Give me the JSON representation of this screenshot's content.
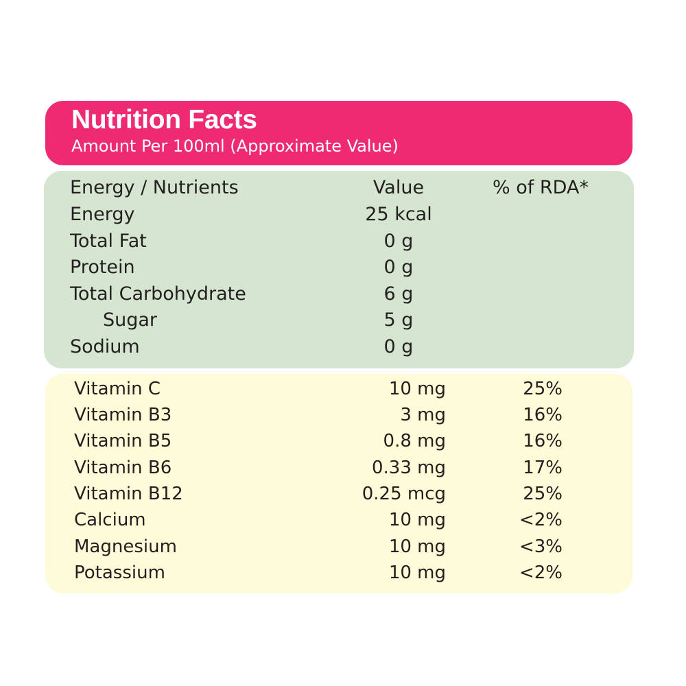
{
  "header": {
    "title": "Nutrition Facts",
    "subtitle": "Amount Per 100ml (Approximate Value)"
  },
  "nutrients": {
    "columns": {
      "name": "Energy / Nutrients",
      "value": "Value",
      "rda": "% of RDA*"
    },
    "rows": [
      {
        "name": "Energy",
        "value": "25 kcal"
      },
      {
        "name": "Total Fat",
        "value": "0 g"
      },
      {
        "name": "Protein",
        "value": "0 g"
      },
      {
        "name": "Total Carbohydrate",
        "value": "6 g"
      },
      {
        "name": "Sugar",
        "value": "5 g"
      },
      {
        "name": "Sodium",
        "value": "0 g"
      }
    ]
  },
  "vitamins": {
    "rows": [
      {
        "name": "Vitamin C",
        "value": "10 mg",
        "rda": "25%"
      },
      {
        "name": "Vitamin B3",
        "value": "3 mg",
        "rda": "16%"
      },
      {
        "name": "Vitamin B5",
        "value": "0.8 mg",
        "rda": "16%"
      },
      {
        "name": "Vitamin B6",
        "value": "0.33 mg",
        "rda": "17%"
      },
      {
        "name": "Vitamin B12",
        "value": "0.25 mcg",
        "rda": "25%"
      },
      {
        "name": "Calcium",
        "value": "10 mg",
        "rda": "<2%"
      },
      {
        "name": "Magnesium",
        "value": "10 mg",
        "rda": "<3%"
      },
      {
        "name": "Potassium",
        "value": "10 mg",
        "rda": "<2%"
      }
    ]
  },
  "colors": {
    "header_bg": "#ee2a72",
    "nutrients_bg": "#d5e5d0",
    "vitamins_bg": "#fefcd8",
    "text": "#231f20"
  }
}
